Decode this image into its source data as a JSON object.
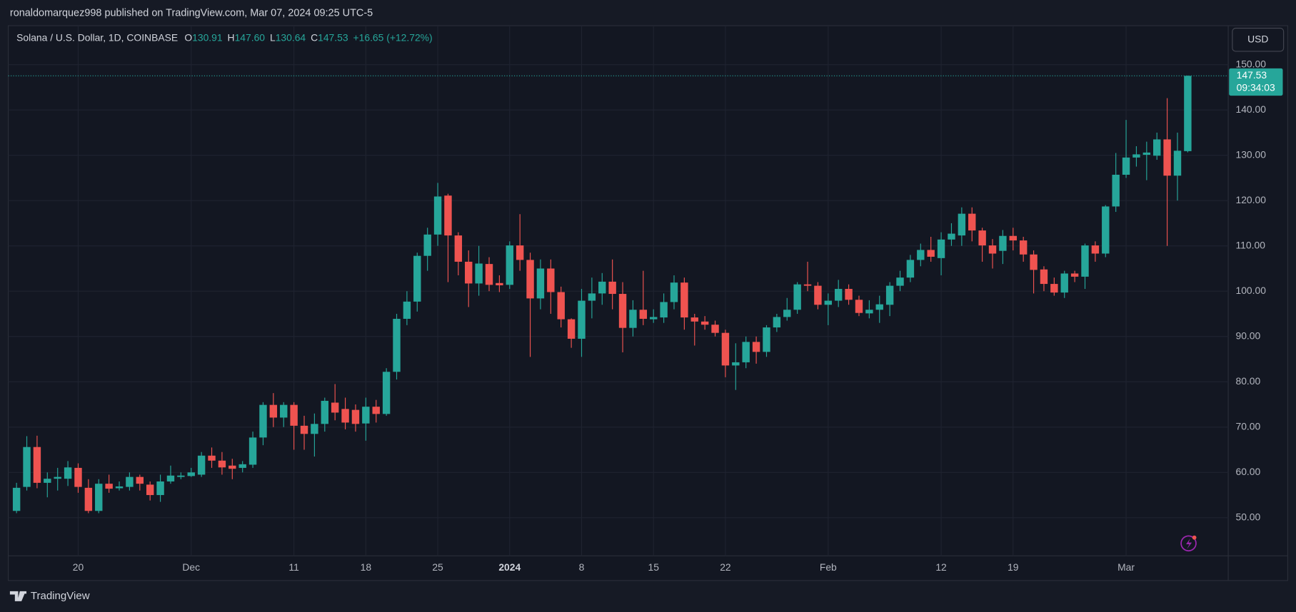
{
  "header": {
    "published": "ronaldomarquez998 published on TradingView.com, Mar 07, 2024 09:25 UTC-5",
    "brand": "TradingView"
  },
  "chart_data": {
    "type": "candlestick",
    "symbol": "Solana / U.S. Dollar, 1D, COINBASE",
    "legend_items": [
      {
        "key": "O",
        "value": "130.91"
      },
      {
        "key": "H",
        "value": "147.60"
      },
      {
        "key": "L",
        "value": "130.64"
      },
      {
        "key": "C",
        "value": "147.53"
      }
    ],
    "change": "+16.65 (+12.72%)",
    "currency": "USD",
    "countdown": "09:34:03",
    "up_color": "#26a69a",
    "down_color": "#ef5350",
    "grid": true,
    "categories": [
      null,
      null,
      null,
      null,
      null,
      null,
      "20",
      null,
      null,
      null,
      null,
      null,
      null,
      null,
      null,
      null,
      null,
      "Dec",
      null,
      null,
      null,
      null,
      null,
      null,
      null,
      null,
      null,
      "11",
      null,
      null,
      null,
      null,
      null,
      null,
      "18",
      null,
      null,
      null,
      null,
      null,
      null,
      "25",
      null,
      null,
      null,
      null,
      null,
      null,
      "2024",
      null,
      null,
      null,
      null,
      null,
      null,
      "8",
      null,
      null,
      null,
      null,
      null,
      null,
      "15",
      null,
      null,
      null,
      null,
      null,
      null,
      "22",
      null,
      null,
      null,
      null,
      null,
      null,
      null,
      null,
      null,
      "Feb",
      null,
      null,
      null,
      null,
      null,
      null,
      null,
      null,
      null,
      null,
      "12",
      null,
      null,
      null,
      null,
      null,
      null,
      "19",
      null,
      null,
      null,
      null,
      null,
      null,
      null,
      null,
      null,
      null,
      "Mar",
      null,
      null,
      null,
      null,
      null,
      null
    ],
    "open": [
      51.5,
      56.8,
      65.6,
      57.7,
      58.6,
      58.6,
      61,
      56.6,
      51.5,
      57.5,
      56.5,
      56.8,
      59,
      57.3,
      55,
      58,
      59,
      59.2,
      59.5,
      63.7,
      62.6,
      61.5,
      61,
      61.7,
      67.7,
      74.9,
      72.1,
      74.9,
      70.3,
      68.5,
      70.7,
      75.4,
      74,
      73.8,
      70.8,
      74.5,
      72.9,
      82.2,
      93.9,
      97.7,
      107.8,
      112.5,
      121.1,
      112.3,
      106.5,
      101.7,
      106,
      101.8,
      101.4,
      110.1,
      106.9,
      98.4,
      105,
      99.8,
      93.8,
      89.5,
      97.9,
      99.5,
      102.1,
      99.4,
      91.9,
      95.9,
      93.8,
      94.2,
      97.6,
      101.9,
      94.2,
      93.3,
      92.6,
      90.8,
      83.6,
      84.3,
      88.8,
      86.6,
      92,
      94.3,
      95.9,
      101.5,
      101.2,
      97,
      97.9,
      100.5,
      98.1,
      95.1,
      95.9,
      97,
      101.2,
      103,
      106.9,
      109.1,
      107.3,
      111.4,
      112.3,
      117.1,
      113.4,
      110.1,
      108.9,
      112.2,
      111.2,
      108.1,
      104.8,
      101.6,
      99.7,
      103.9,
      103.2,
      110.1,
      108.3,
      118.7,
      125.7,
      129.5,
      130.1,
      129.9,
      133.5,
      125.5,
      130.91
    ],
    "high": [
      57.7,
      68,
      68.1,
      60,
      61,
      62.5,
      62,
      58.5,
      58.5,
      59.5,
      58,
      60,
      59.5,
      58,
      59.5,
      61.5,
      60,
      61,
      64.5,
      65.5,
      64.5,
      63,
      62.5,
      69,
      75.5,
      77.5,
      75.5,
      75.5,
      72.5,
      73,
      76.5,
      79.5,
      76.5,
      75,
      76.5,
      76,
      83,
      95,
      100,
      108.5,
      114,
      123.9,
      121.5,
      113,
      109,
      110,
      107.5,
      103.5,
      111,
      117,
      108.5,
      107,
      107,
      101,
      94,
      100.5,
      103,
      104,
      107,
      102,
      98,
      104.5,
      96,
      99.5,
      103.5,
      103,
      95,
      94.5,
      93.5,
      91.5,
      88.5,
      90,
      90,
      92.5,
      95,
      98.5,
      102,
      106.5,
      102,
      99.5,
      102.5,
      101.5,
      99,
      98,
      99,
      102,
      104.5,
      108,
      110.5,
      112,
      113,
      115,
      118.5,
      118.5,
      114,
      111.5,
      113.5,
      114,
      112,
      109,
      105.5,
      103,
      104.5,
      104.5,
      110.5,
      111,
      119,
      130.5,
      137.8,
      132,
      133,
      135,
      142.6,
      135,
      147.6
    ],
    "low": [
      51,
      56,
      56.5,
      54.5,
      56,
      57,
      55.5,
      51,
      51,
      55.5,
      56,
      56,
      56,
      53.8,
      53.5,
      57.5,
      58.5,
      59,
      59,
      61,
      59.5,
      58.5,
      60,
      61,
      66,
      70,
      70,
      65,
      65,
      63.5,
      69,
      71.5,
      69.5,
      69,
      67,
      71,
      72.5,
      80.5,
      92.5,
      95.5,
      104.5,
      110,
      102,
      103.5,
      96.5,
      99,
      100,
      99.8,
      100.5,
      104.5,
      85.5,
      96,
      95,
      92,
      87.5,
      85.5,
      94,
      97,
      96,
      86.5,
      90,
      92.5,
      93,
      93,
      96,
      91.5,
      88,
      91.5,
      90,
      81,
      78.2,
      83,
      84,
      85.5,
      91,
      93.5,
      95,
      100,
      96,
      92.5,
      96.5,
      97,
      94.5,
      94,
      93,
      94.5,
      100,
      102,
      105.5,
      106.5,
      103.5,
      110,
      110,
      111,
      106.5,
      105,
      106,
      109,
      106.5,
      99.5,
      100,
      99,
      98.5,
      102,
      100.5,
      106.5,
      107.5,
      117.5,
      125,
      127.5,
      124.5,
      129,
      110,
      120,
      130.64
    ],
    "close": [
      56.6,
      65.6,
      57.7,
      58.6,
      59,
      61.1,
      56.8,
      51.5,
      57.5,
      56.4,
      56.9,
      59,
      57.5,
      55,
      58,
      59.3,
      59.3,
      60,
      63.7,
      62.6,
      61.1,
      60.8,
      61.8,
      67.7,
      74.9,
      72.1,
      74.9,
      70.3,
      68.5,
      70.7,
      75.8,
      73.2,
      71,
      70.7,
      74.5,
      72.9,
      82.2,
      93.9,
      97.7,
      107.8,
      112.5,
      120.9,
      112.3,
      106.5,
      101.7,
      106.1,
      101.4,
      101.3,
      110.1,
      106.9,
      98.4,
      105,
      99.8,
      93.8,
      89.5,
      97.9,
      99.5,
      102.1,
      99.4,
      91.9,
      95.9,
      93.9,
      94.3,
      97.6,
      101.9,
      94.2,
      93.3,
      92.6,
      90.8,
      83.6,
      84.3,
      88.8,
      86.6,
      92,
      94.3,
      95.9,
      101.5,
      101.2,
      97,
      97.9,
      100.5,
      98.1,
      95.2,
      95.9,
      97.1,
      101.2,
      103,
      106.9,
      109.1,
      107.6,
      111.4,
      112.7,
      117.1,
      113.4,
      110.1,
      108.3,
      112.2,
      111.2,
      108.1,
      104.7,
      101.6,
      99.7,
      103.9,
      103.2,
      110.1,
      108.3,
      118.7,
      125.7,
      129.5,
      130.2,
      130.6,
      133.5,
      125.5,
      131,
      147.53
    ],
    "ylim": [
      41.6,
      158.6
    ],
    "yticks": [
      {
        "value": 50,
        "label": "50.00"
      },
      {
        "value": 60,
        "label": "60.00"
      },
      {
        "value": 70,
        "label": "70.00"
      },
      {
        "value": 80,
        "label": "80.00"
      },
      {
        "value": 90,
        "label": "90.00"
      },
      {
        "value": 100,
        "label": "100.00"
      },
      {
        "value": 110,
        "label": "110.00"
      },
      {
        "value": 120,
        "label": "120.00"
      },
      {
        "value": 130,
        "label": "130.00"
      },
      {
        "value": 140,
        "label": "140.00"
      },
      {
        "value": 150,
        "label": "150.00"
      }
    ]
  }
}
